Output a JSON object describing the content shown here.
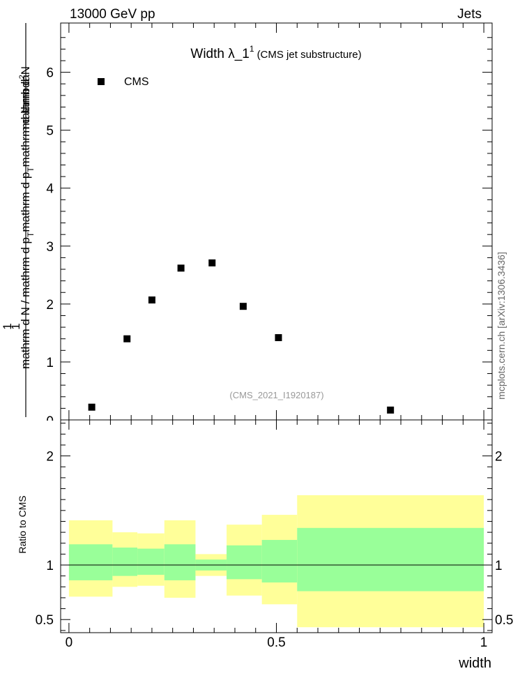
{
  "header": {
    "left": "13000 GeV pp",
    "right": "Jets"
  },
  "title": {
    "main": "Width λ_1",
    "superscript": "1",
    "suffix": "(CMS jet substructure)"
  },
  "ylabel": {
    "numerator": "1",
    "denominator_main": "mathrm d N / mathrm d p",
    "denominator_sub1": "T",
    "denominator_mid": "mathrm d p",
    "denominator_sub2": "T",
    "denominator_end": "mathrm d lambda",
    "right_top_a": "mathrm d",
    "right_top_sup": "2",
    "right_top_b": "N"
  },
  "legend": {
    "label": "CMS"
  },
  "watermark": "(CMS_2021_I1920187)",
  "side_credit": "mcplots.cern.ch [arXiv:1306.3436]",
  "ratio_ylabel": "Ratio to CMS",
  "xlabel": "width",
  "colors": {
    "band_outer": "#ffff99",
    "band_inner": "#99ff99",
    "marker": "#000000"
  },
  "chart_data": {
    "type": "scatter",
    "main": {
      "xlim": [
        -0.02,
        1.02
      ],
      "ylim": [
        0,
        6.85
      ],
      "yticks": [
        1,
        2,
        3,
        4,
        5,
        6
      ],
      "ytick_labels": [
        "1",
        "2",
        "3",
        "4",
        "5",
        "6"
      ],
      "series": [
        {
          "name": "CMS",
          "x": [
            0.055,
            0.14,
            0.2,
            0.27,
            0.345,
            0.42,
            0.505,
            0.775
          ],
          "y": [
            0.22,
            1.4,
            2.07,
            2.62,
            2.71,
            1.96,
            1.42,
            0.17
          ]
        }
      ]
    },
    "ratio": {
      "ylim": [
        0.38,
        2.33
      ],
      "yticks": [
        0.5,
        1,
        2
      ],
      "ytick_labels": [
        "0.5",
        "1",
        "2"
      ],
      "reference": 1,
      "bins": [
        {
          "x0": 0.0,
          "x1": 0.105,
          "inner": [
            0.86,
            1.19
          ],
          "outer": [
            0.71,
            1.41
          ]
        },
        {
          "x0": 0.105,
          "x1": 0.165,
          "inner": [
            0.9,
            1.16
          ],
          "outer": [
            0.8,
            1.3
          ]
        },
        {
          "x0": 0.165,
          "x1": 0.23,
          "inner": [
            0.91,
            1.15
          ],
          "outer": [
            0.81,
            1.29
          ]
        },
        {
          "x0": 0.23,
          "x1": 0.305,
          "inner": [
            0.86,
            1.19
          ],
          "outer": [
            0.7,
            1.41
          ]
        },
        {
          "x0": 0.305,
          "x1": 0.38,
          "inner": [
            0.95,
            1.05
          ],
          "outer": [
            0.9,
            1.1
          ]
        },
        {
          "x0": 0.38,
          "x1": 0.465,
          "inner": [
            0.87,
            1.18
          ],
          "outer": [
            0.72,
            1.37
          ]
        },
        {
          "x0": 0.465,
          "x1": 0.55,
          "inner": [
            0.84,
            1.23
          ],
          "outer": [
            0.64,
            1.46
          ]
        },
        {
          "x0": 0.55,
          "x1": 1.0,
          "inner": [
            0.76,
            1.34
          ],
          "outer": [
            0.43,
            1.64
          ]
        }
      ]
    },
    "xticks": [
      0,
      0.5,
      1
    ],
    "xtick_labels": [
      "0",
      "0.5",
      "1"
    ]
  }
}
